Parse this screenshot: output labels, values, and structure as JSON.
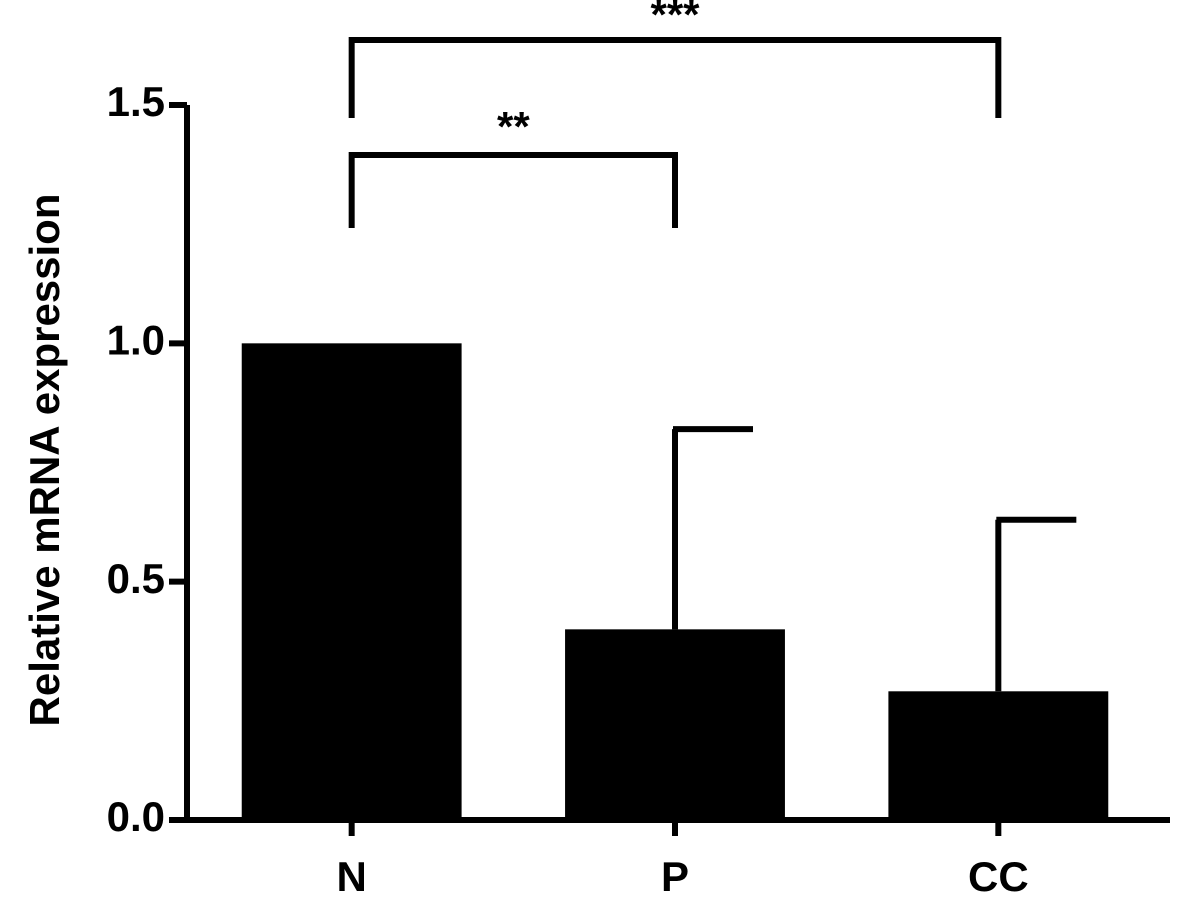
{
  "chart_data": {
    "type": "bar",
    "y_label": "Relative mRNA expression",
    "categories": [
      "N",
      "P",
      "CC"
    ],
    "values": [
      1.0,
      0.4,
      0.27
    ],
    "errors": [
      null,
      0.42,
      0.36
    ],
    "color": "#000000",
    "ylim": [
      0,
      1.5
    ],
    "yticks": [
      {
        "value": 0,
        "label": "0.0"
      },
      {
        "value": 0.5,
        "label": "0.5"
      },
      {
        "value": 1.0,
        "label": "1.0"
      },
      {
        "value": 1.5,
        "label": "1.5"
      }
    ],
    "annotations": [
      "**",
      "***"
    ]
  }
}
